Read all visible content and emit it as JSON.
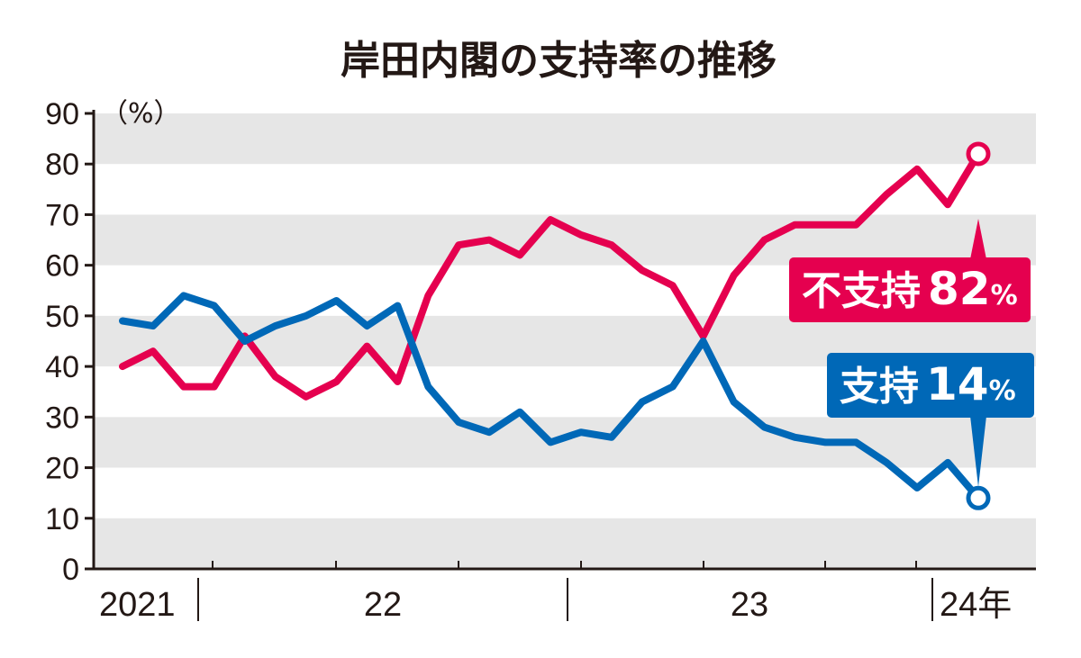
{
  "chart_data": {
    "type": "line",
    "title": "岸田内閣の支持率の推移",
    "yunit": "（%）",
    "ylim": [
      0,
      90
    ],
    "yticks": [
      0,
      10,
      20,
      30,
      40,
      50,
      60,
      70,
      80,
      90
    ],
    "grid": "alternating horizontal bands",
    "x_labels": [
      "2021",
      "22",
      "23",
      "24年"
    ],
    "series": [
      {
        "color": "#e5004f",
        "values": [
          40,
          43,
          36,
          36,
          46,
          38,
          34,
          37,
          44,
          37,
          54,
          64,
          65,
          62,
          69,
          66,
          64,
          59,
          56,
          46,
          58,
          65,
          68,
          68,
          68,
          74,
          79,
          72,
          82
        ],
        "callout": {
          "label": "不支持",
          "value": "82",
          "unit": "%"
        }
      },
      {
        "color": "#0068b7",
        "values": [
          49,
          48,
          54,
          52,
          45,
          48,
          50,
          53,
          48,
          52,
          36,
          29,
          27,
          31,
          25,
          27,
          26,
          33,
          36,
          45,
          33,
          28,
          26,
          25,
          25,
          21,
          16,
          21,
          14
        ],
        "callout": {
          "label": "支持",
          "value": "14",
          "unit": "%"
        }
      }
    ]
  }
}
